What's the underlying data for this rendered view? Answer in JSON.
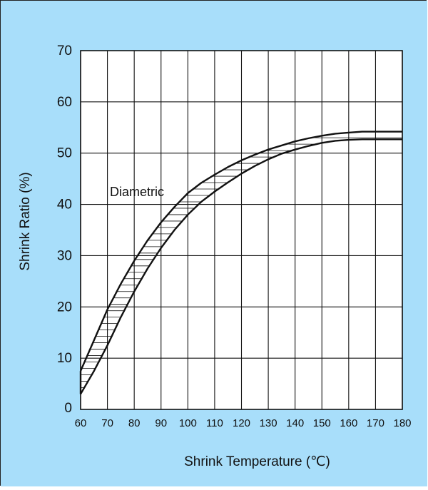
{
  "colors": {
    "background": "#a8defa",
    "plot_background": "#ffffff",
    "lines": "#111111",
    "hatch": "#111111"
  },
  "chart_data": {
    "type": "line",
    "xlabel": "Shrink Temperature (℃)",
    "ylabel": "Shrink Ratio (%)",
    "annotation": "Diametric",
    "xlim": [
      60,
      180
    ],
    "ylim": [
      0,
      70
    ],
    "xticks": [
      60,
      70,
      80,
      90,
      100,
      110,
      120,
      130,
      140,
      150,
      160,
      170,
      180
    ],
    "yticks": [
      0,
      10,
      20,
      30,
      40,
      50,
      60,
      70
    ],
    "grid": true,
    "fill_between": "hatched",
    "series": [
      {
        "x": [
          60,
          65,
          70,
          75,
          80,
          85,
          90,
          95,
          100,
          105,
          110,
          115,
          120,
          125,
          130,
          135,
          140,
          145,
          150,
          155,
          160,
          165,
          170,
          175,
          180
        ],
        "y": [
          7.5,
          13.5,
          19.5,
          24.5,
          29,
          33,
          36.5,
          39.5,
          42.2,
          44.2,
          45.8,
          47.3,
          48.6,
          49.7,
          50.7,
          51.5,
          52.3,
          52.9,
          53.4,
          53.8,
          54.0,
          54.2,
          54.2,
          54.2,
          54.2
        ]
      },
      {
        "x": [
          60,
          65,
          70,
          75,
          80,
          85,
          90,
          95,
          100,
          105,
          110,
          115,
          120,
          125,
          130,
          135,
          140,
          145,
          150,
          155,
          160,
          165,
          170,
          175,
          180
        ],
        "y": [
          3,
          7.5,
          12.5,
          18,
          23,
          27.5,
          31.5,
          35,
          38,
          40.5,
          42.5,
          44.3,
          46,
          47.5,
          48.8,
          49.9,
          50.7,
          51.4,
          52.0,
          52.4,
          52.6,
          52.7,
          52.7,
          52.7,
          52.7
        ]
      }
    ]
  }
}
